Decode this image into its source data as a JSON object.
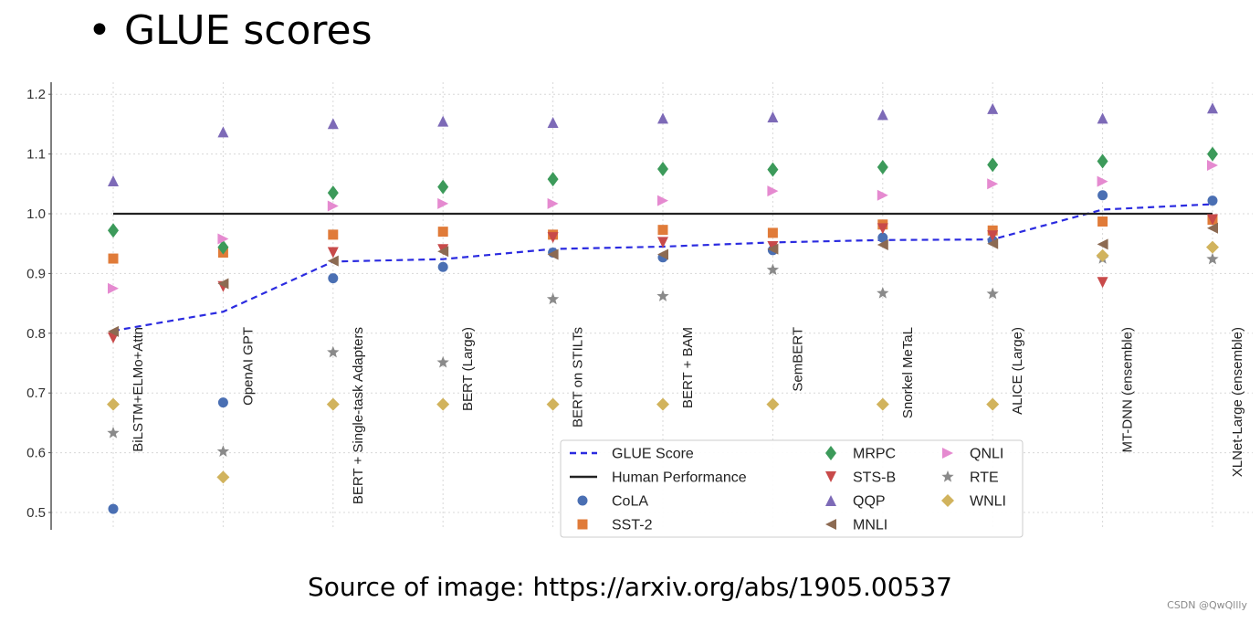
{
  "slide": {
    "title": "• GLUE scores",
    "source": "Source of image: https://arxiv.org/abs/1905.00537",
    "watermark": "CSDN @QwQllly"
  },
  "colors": {
    "glue_score": "#2b2be0",
    "human": "#222222",
    "CoLA": "#4a6fb3",
    "SST-2": "#e07b39",
    "MRPC": "#3c9a5a",
    "STS-B": "#c84a4a",
    "QQP": "#7d6ab7",
    "MNLI": "#8c6a52",
    "QNLI": "#e58ad0",
    "RTE": "#8a8a8a",
    "WNLI": "#d1b35d"
  },
  "chart_data": {
    "type": "scatter",
    "title": "",
    "xlabel": "",
    "ylabel": "",
    "ylim": [
      0.48,
      1.22
    ],
    "yticks": [
      "0.5",
      "0.6",
      "0.7",
      "0.8",
      "0.9",
      "1.0",
      "1.1",
      "1.2"
    ],
    "grid": true,
    "legend_position": "bottom-center",
    "categories": [
      "BiLSTM+ELMo+Attn",
      "OpenAI GPT",
      "BERT + Single-task Adapters",
      "BERT (Large)",
      "BERT on STILTs",
      "BERT + BAM",
      "SemBERT",
      "Snorkel MeTaL",
      "ALICE (Large)",
      "MT-DNN (ensemble)",
      "XLNet-Large (ensemble)"
    ],
    "lines": [
      {
        "name": "GLUE Score",
        "style": "dashed",
        "values": [
          0.804,
          0.836,
          0.92,
          0.924,
          0.941,
          0.945,
          0.952,
          0.956,
          0.957,
          1.007,
          1.016
        ]
      },
      {
        "name": "Human Performance",
        "style": "solid",
        "values": [
          1.0,
          1.0,
          1.0,
          1.0,
          1.0,
          1.0,
          1.0,
          1.0,
          1.0,
          1.0,
          1.0
        ]
      }
    ],
    "series": [
      {
        "name": "CoLA",
        "marker": "circle",
        "values": [
          0.506,
          0.684,
          0.892,
          0.911,
          0.935,
          0.927,
          0.939,
          0.96,
          0.955,
          1.031,
          1.022
        ]
      },
      {
        "name": "SST-2",
        "marker": "square",
        "values": [
          0.925,
          0.935,
          0.965,
          0.97,
          0.965,
          0.973,
          0.968,
          0.982,
          0.972,
          0.987,
          0.99
        ]
      },
      {
        "name": "MRPC",
        "marker": "diamond-thin",
        "values": [
          0.972,
          0.944,
          1.035,
          1.045,
          1.058,
          1.075,
          1.074,
          1.078,
          1.082,
          1.088,
          1.1
        ]
      },
      {
        "name": "STS-B",
        "marker": "triangle-down",
        "values": [
          0.792,
          0.878,
          0.935,
          0.94,
          0.96,
          0.952,
          0.945,
          0.975,
          0.963,
          0.885,
          0.99
        ]
      },
      {
        "name": "QQP",
        "marker": "triangle-up",
        "values": [
          1.055,
          1.137,
          1.151,
          1.155,
          1.153,
          1.16,
          1.162,
          1.166,
          1.176,
          1.16,
          1.177
        ]
      },
      {
        "name": "MNLI",
        "marker": "triangle-left",
        "values": [
          0.803,
          0.883,
          0.921,
          0.937,
          0.932,
          0.932,
          0.941,
          0.948,
          0.95,
          0.949,
          0.976
        ]
      },
      {
        "name": "QNLI",
        "marker": "triangle-right",
        "values": [
          0.875,
          0.958,
          1.013,
          1.017,
          1.017,
          1.022,
          1.038,
          1.031,
          1.05,
          1.054,
          1.081
        ]
      },
      {
        "name": "RTE",
        "marker": "star",
        "values": [
          0.633,
          0.602,
          0.768,
          0.751,
          0.857,
          0.862,
          0.906,
          0.867,
          0.866,
          0.925,
          0.924
        ]
      },
      {
        "name": "WNLI",
        "marker": "diamond",
        "values": [
          0.681,
          0.559,
          0.681,
          0.681,
          0.681,
          0.681,
          0.681,
          0.681,
          0.681,
          0.93,
          0.944
        ]
      }
    ],
    "legend_columns": [
      [
        "GLUE Score",
        "Human Performance",
        "CoLA",
        "SST-2"
      ],
      [
        "MRPC",
        "STS-B",
        "QQP",
        "MNLI"
      ],
      [
        "QNLI",
        "RTE",
        "WNLI"
      ]
    ]
  }
}
